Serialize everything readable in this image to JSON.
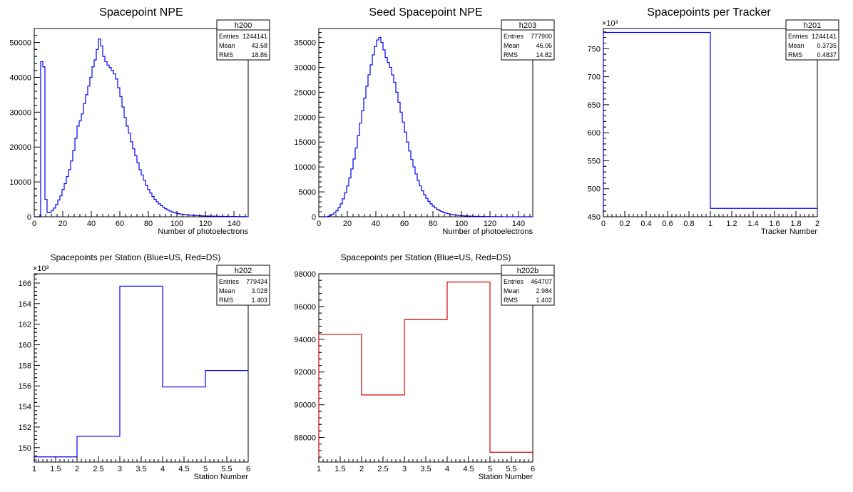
{
  "chart_data": [
    {
      "type": "histogram",
      "title": "Spacepoint NPE",
      "xlabel": "Number of photoelectrons",
      "ylabel": "",
      "xlim": [
        0,
        150
      ],
      "ylim": [
        0,
        54000
      ],
      "xticks": [
        0,
        20,
        40,
        60,
        80,
        100,
        120,
        140
      ],
      "yticks": [
        0,
        10000,
        20000,
        30000,
        40000,
        50000
      ],
      "y_exponent": "",
      "color": "#0000ff",
      "stats": {
        "name": "h200",
        "rows": [
          [
            "Entries",
            "1244141"
          ],
          [
            "Mean",
            "43.68"
          ],
          [
            "RMS",
            "18.86"
          ]
        ]
      },
      "bin_width": 1.5,
      "values": [
        0,
        0,
        0,
        44500,
        43000,
        5000,
        1200,
        1300,
        1800,
        2500,
        3500,
        4800,
        6000,
        7800,
        9500,
        11500,
        13500,
        16000,
        19000,
        22500,
        26000,
        27500,
        29500,
        32500,
        35000,
        37500,
        40000,
        43000,
        45000,
        48000,
        51000,
        49000,
        46000,
        44500,
        43500,
        42800,
        42000,
        41000,
        39500,
        37000,
        34500,
        31500,
        28500,
        26000,
        24000,
        21500,
        19500,
        17500,
        15500,
        13500,
        12000,
        10500,
        9000,
        7800,
        6800,
        5800,
        5000,
        4300,
        3700,
        3200,
        2750,
        2300,
        1950,
        1650,
        1400,
        1200,
        1050,
        900,
        780,
        680,
        600,
        540,
        480,
        430,
        390,
        350,
        320,
        290,
        260,
        240,
        220,
        200,
        180,
        160,
        150,
        140,
        130,
        120,
        110,
        100,
        90,
        80,
        75,
        70,
        65,
        60,
        55,
        50,
        0,
        0
      ]
    },
    {
      "type": "histogram",
      "title": "Seed Spacepoint NPE",
      "xlabel": "Number of photoelectrons",
      "ylabel": "",
      "xlim": [
        0,
        150
      ],
      "ylim": [
        0,
        37800
      ],
      "xticks": [
        0,
        20,
        40,
        60,
        80,
        100,
        120,
        140
      ],
      "yticks": [
        0,
        5000,
        10000,
        15000,
        20000,
        25000,
        30000,
        35000
      ],
      "y_exponent": "",
      "color": "#0000ff",
      "stats": {
        "name": "h203",
        "rows": [
          [
            "Entries",
            "777900"
          ],
          [
            "Mean",
            "46.06"
          ],
          [
            "RMS",
            "14.82"
          ]
        ]
      },
      "bin_width": 1.5,
      "values": [
        0,
        0,
        0,
        0,
        100,
        300,
        500,
        800,
        1200,
        1800,
        2600,
        3600,
        4800,
        6200,
        7800,
        9600,
        11600,
        13800,
        16300,
        18800,
        21300,
        23800,
        26200,
        28500,
        30500,
        32500,
        34200,
        35500,
        36000,
        35000,
        33500,
        32000,
        31000,
        30000,
        28500,
        27000,
        25000,
        23000,
        21000,
        19000,
        17000,
        15000,
        13200,
        11500,
        10000,
        8600,
        7300,
        6200,
        5200,
        4400,
        3700,
        3100,
        2600,
        2150,
        1800,
        1500,
        1250,
        1050,
        880,
        740,
        620,
        520,
        440,
        370,
        310,
        260,
        220,
        190,
        160,
        140,
        120,
        105,
        90,
        80,
        70,
        60,
        52,
        45,
        40,
        35,
        30,
        26,
        22,
        19,
        16,
        14,
        12,
        10,
        9,
        8,
        7,
        6,
        5,
        4,
        3,
        2,
        2,
        1,
        0,
        0
      ]
    },
    {
      "type": "histogram",
      "title": "Spacepoints per Tracker",
      "xlabel": "Tracker Number",
      "ylabel": "",
      "xlim": [
        0,
        2
      ],
      "ylim": [
        450,
        786
      ],
      "xticks": [
        0,
        0.2,
        0.4,
        0.6,
        0.8,
        1,
        1.2,
        1.4,
        1.6,
        1.8,
        2
      ],
      "yticks": [
        450,
        500,
        550,
        600,
        650,
        700,
        750
      ],
      "y_exponent": "×10³",
      "color": "#0000ff",
      "stats": {
        "name": "h201",
        "rows": [
          [
            "Entries",
            "1244141"
          ],
          [
            "Mean",
            "0.3735"
          ],
          [
            "RMS",
            "0.4837"
          ]
        ]
      },
      "bin_width": 1,
      "values": [
        779,
        465
      ]
    },
    {
      "type": "histogram",
      "title": "Spacepoints per Station (Blue=US, Red=DS)",
      "xlabel": "Station Number",
      "ylabel": "",
      "xlim": [
        1,
        6
      ],
      "ylim": [
        148.6,
        166.9
      ],
      "xticks": [
        1,
        1.5,
        2,
        2.5,
        3,
        3.5,
        4,
        4.5,
        5,
        5.5,
        6
      ],
      "yticks": [
        150,
        152,
        154,
        156,
        158,
        160,
        162,
        164,
        166
      ],
      "y_exponent": "×10³",
      "color": "#0000ff",
      "stats": {
        "name": "h202",
        "rows": [
          [
            "Entries",
            "779434"
          ],
          [
            "Mean",
            "3.028"
          ],
          [
            "RMS",
            "1.403"
          ]
        ]
      },
      "bin_width": 1,
      "values": [
        149.1,
        151.1,
        165.7,
        155.9,
        157.5
      ]
    },
    {
      "type": "histogram",
      "title": "Spacepoints per Station (Blue=US, Red=DS)",
      "xlabel": "Station Number",
      "ylabel": "",
      "xlim": [
        1,
        6
      ],
      "ylim": [
        86500,
        98000
      ],
      "xticks": [
        1,
        1.5,
        2,
        2.5,
        3,
        3.5,
        4,
        4.5,
        5,
        5.5,
        6
      ],
      "yticks": [
        88000,
        90000,
        92000,
        94000,
        96000,
        98000
      ],
      "y_exponent": "",
      "color": "#dd0000",
      "stats": {
        "name": "h202b",
        "rows": [
          [
            "Entries",
            "464707"
          ],
          [
            "Mean",
            "2.984"
          ],
          [
            "RMS",
            "1.402"
          ]
        ]
      },
      "bin_width": 1,
      "values": [
        94300,
        90600,
        95200,
        97500,
        87100
      ]
    }
  ]
}
